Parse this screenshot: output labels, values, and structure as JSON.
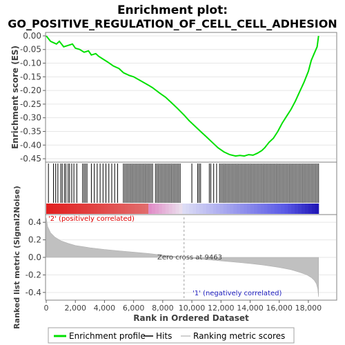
{
  "chart_data": [
    {
      "type": "line",
      "panel": "enrichment",
      "title": "Enrichment plot:",
      "subtitle": "GO_POSITIVE_REGULATION_OF_CELL_CELL_ADHESION",
      "ylabel": "Enrichment score (ES)",
      "ylim": [
        -0.46,
        0.01
      ],
      "yticks": [
        "0.00",
        "-0.05",
        "-0.10",
        "-0.15",
        "-0.20",
        "-0.25",
        "-0.30",
        "-0.35",
        "-0.40",
        "-0.45"
      ],
      "ytick_values": [
        0.0,
        -0.05,
        -0.1,
        -0.15,
        -0.2,
        -0.25,
        -0.3,
        -0.35,
        -0.4,
        -0.45
      ],
      "grid": true,
      "color": "#00e000",
      "series": [
        {
          "name": "Enrichment profile",
          "x": [
            0,
            300,
            700,
            900,
            1200,
            1500,
            1800,
            2000,
            2300,
            2600,
            2900,
            3100,
            3400,
            3600,
            3900,
            4200,
            4600,
            5000,
            5300,
            5700,
            6000,
            6500,
            7000,
            7300,
            7800,
            8200,
            8600,
            9000,
            9463,
            9800,
            10200,
            10600,
            11000,
            11400,
            11800,
            12200,
            12600,
            13000,
            13300,
            13600,
            13900,
            14200,
            14500,
            14800,
            15000,
            15300,
            15600,
            15900,
            16200,
            16500,
            16800,
            17100,
            17400,
            17700,
            18000,
            18200,
            18400,
            18600,
            18700
          ],
          "y": [
            0.0,
            -0.02,
            -0.03,
            -0.02,
            -0.04,
            -0.035,
            -0.03,
            -0.045,
            -0.05,
            -0.06,
            -0.055,
            -0.07,
            -0.065,
            -0.075,
            -0.085,
            -0.095,
            -0.11,
            -0.12,
            -0.135,
            -0.145,
            -0.15,
            -0.165,
            -0.18,
            -0.19,
            -0.21,
            -0.225,
            -0.245,
            -0.265,
            -0.29,
            -0.31,
            -0.33,
            -0.35,
            -0.37,
            -0.39,
            -0.41,
            -0.425,
            -0.435,
            -0.44,
            -0.438,
            -0.44,
            -0.435,
            -0.437,
            -0.43,
            -0.42,
            -0.41,
            -0.39,
            -0.375,
            -0.35,
            -0.32,
            -0.295,
            -0.27,
            -0.24,
            -0.205,
            -0.17,
            -0.13,
            -0.09,
            -0.065,
            -0.04,
            0.0
          ]
        }
      ]
    },
    {
      "type": "bar",
      "panel": "hits",
      "description_series": "Hits",
      "hit_ranks": [
        150,
        500,
        650,
        800,
        1000,
        1100,
        1250,
        1350,
        1500,
        1600,
        1750,
        1900,
        2100,
        2500,
        2600,
        2700,
        2800,
        3100,
        3300,
        3500,
        3700,
        3900,
        4100,
        4300,
        4500,
        4700,
        4900,
        5300,
        5400,
        5500,
        5600,
        5700,
        5800,
        5900,
        6000,
        6100,
        6200,
        6300,
        6400,
        6500,
        6600,
        6700,
        6800,
        6900,
        7000,
        7100,
        7200,
        7300,
        7500,
        7600,
        7700,
        7800,
        7900,
        8000,
        8100,
        8200,
        8300,
        8400,
        8500,
        8600,
        8700,
        8800,
        8900,
        9000,
        9100,
        9200,
        10000,
        10400,
        10500,
        10600,
        11200,
        11300,
        11500,
        11700,
        11900,
        12000,
        12100,
        12200,
        12300,
        12400,
        12500,
        12600,
        12700,
        12800,
        12900,
        13000,
        13100,
        13200,
        13300,
        13400,
        13500,
        13600,
        13700,
        13800,
        13900,
        14000,
        14100,
        14200,
        14300,
        14400,
        14500,
        14600,
        14700,
        14800,
        14900,
        15000,
        15100,
        15200,
        15300,
        15400,
        15500,
        15600,
        15700,
        15800,
        15900,
        16000,
        16100,
        16200,
        16300,
        16400,
        16500,
        16600,
        16700,
        16800,
        16900,
        17000,
        17100,
        17200,
        17300,
        17400,
        17500,
        17600,
        17700,
        17800,
        17900,
        18000,
        18100,
        18200,
        18300,
        18400,
        18500,
        18600,
        18700
      ]
    },
    {
      "type": "area",
      "panel": "ranked_metric",
      "xlabel": "Rank in Ordered Dataset",
      "ylabel": "Ranked list metric (Signal2Noise)",
      "xlim": [
        0,
        19900
      ],
      "ylim": [
        -0.48,
        0.48
      ],
      "xticks": [
        "0",
        "2,000",
        "4,000",
        "6,000",
        "8,000",
        "10,000",
        "12,000",
        "14,000",
        "16,000",
        "18,000"
      ],
      "xtick_values": [
        0,
        2000,
        4000,
        6000,
        8000,
        10000,
        12000,
        14000,
        16000,
        18000
      ],
      "yticks": [
        "0.4",
        "0.2",
        "0.0",
        "-0.2",
        "-0.4"
      ],
      "ytick_values": [
        0.4,
        0.2,
        0.0,
        -0.2,
        -0.4
      ],
      "zero_cross": 9463,
      "n_genes": 18700,
      "color": "#c0c0c0",
      "series": [
        {
          "name": "Ranking metric scores",
          "x": [
            0,
            100,
            300,
            600,
            1000,
            1500,
            2000,
            3000,
            4000,
            5000,
            6000,
            7000,
            8000,
            9000,
            9463,
            10000,
            11000,
            12000,
            13000,
            14000,
            15000,
            16000,
            16800,
            17400,
            17900,
            18200,
            18400,
            18550,
            18650,
            18700
          ],
          "y": [
            0.45,
            0.35,
            0.28,
            0.23,
            0.19,
            0.16,
            0.135,
            0.11,
            0.09,
            0.075,
            0.06,
            0.045,
            0.025,
            0.008,
            0.0,
            -0.01,
            -0.025,
            -0.04,
            -0.055,
            -0.07,
            -0.09,
            -0.115,
            -0.14,
            -0.17,
            -0.2,
            -0.23,
            -0.26,
            -0.3,
            -0.36,
            -0.45
          ]
        }
      ]
    }
  ],
  "annotations": {
    "pos_label": "'2' (positively correlated)",
    "neg_label": "'1' (negatively correlated)",
    "zero_cross_label": "Zero cross at 9463"
  },
  "legend": {
    "placement": "bottom",
    "items": [
      {
        "label": "Enrichment profile",
        "color": "#00e000",
        "style": "line"
      },
      {
        "label": "Hits",
        "color": "#000000",
        "style": "line"
      },
      {
        "label": "Ranking metric scores",
        "color": "#c0c0c0",
        "style": "line"
      }
    ]
  },
  "colors": {
    "pos": "#e00000",
    "neg": "#2020c0",
    "pos_label": "#e00000",
    "neg_label": "#2020c0"
  }
}
